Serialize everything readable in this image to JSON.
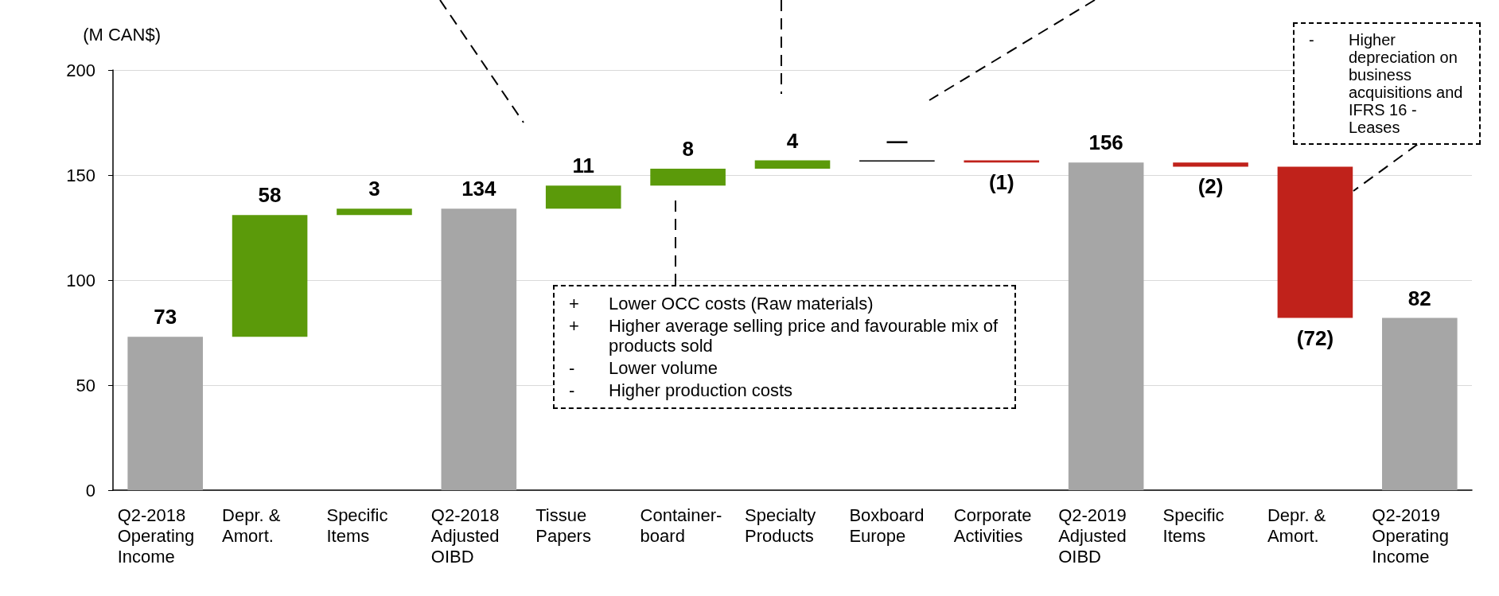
{
  "chart_data": {
    "type": "bar",
    "ylabel": "(M CAN$)",
    "categories": [
      "Q2-2018\nOperating\nIncome",
      "Depr. &\nAmort.",
      "Specific\nItems",
      "Q2-2018\nAdjusted\nOIBD",
      "Tissue\nPapers",
      "Container-\nboard",
      "Specialty\nProducts",
      "Boxboard\nEurope",
      "Corporate\nActivities",
      "Q2-2019\nAdjusted\nOIBD",
      "Specific\nItems",
      "Depr. &\nAmort.",
      "Q2-2019\nOperating\nIncome"
    ],
    "values": [
      73,
      58,
      3,
      134,
      11,
      8,
      4,
      0,
      -1,
      156,
      -2,
      -72,
      82
    ],
    "base": [
      0,
      73,
      131,
      0,
      134,
      145,
      153,
      157,
      157,
      0,
      156,
      154,
      0
    ],
    "colors": [
      "#a6a6a6",
      "#5b9a0a",
      "#5b9a0a",
      "#a6a6a6",
      "#5b9a0a",
      "#5b9a0a",
      "#5b9a0a",
      "#000000",
      "#c0221b",
      "#a6a6a6",
      "#c0221b",
      "#c0221b",
      "#a6a6a6"
    ],
    "value_labels": [
      "73",
      "58",
      "3",
      "134",
      "11",
      "8",
      "4",
      "—",
      "(1)",
      "156",
      "(2)",
      "(72)",
      "82"
    ],
    "ylim": [
      0,
      200
    ],
    "yticks": [
      0,
      50,
      100,
      150,
      200
    ],
    "grid": "y",
    "annotations": [
      "+ Lower OCC costs (Raw materials)",
      "+ Higher average selling price and favourable mix of products sold",
      "- Lower volume",
      "- Higher production costs",
      "- Higher depreciation on business acquisitions and IFRS 16 - Leases"
    ]
  }
}
